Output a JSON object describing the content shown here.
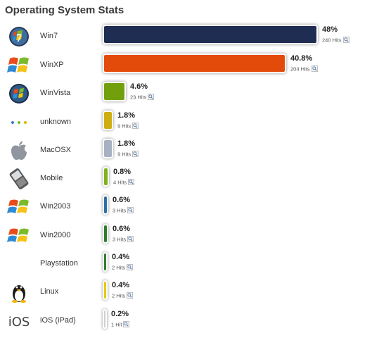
{
  "title": "Operating System Stats",
  "rows": [
    {
      "label": "Win7",
      "percent": "48%",
      "hits": "240 Hits",
      "value": 48,
      "color": "#1f2d52",
      "icon": "windows7-icon"
    },
    {
      "label": "WinXP",
      "percent": "40.8%",
      "hits": "204 Hits",
      "value": 40.8,
      "color": "#e34b0b",
      "icon": "windows-xp-icon"
    },
    {
      "label": "WinVista",
      "percent": "4.6%",
      "hits": "23 Hits",
      "value": 4.6,
      "color": "#72a00c",
      "icon": "windows-vista-icon"
    },
    {
      "label": "unknown",
      "percent": "1.8%",
      "hits": "9 Hits",
      "value": 1.8,
      "color": "#ceae10",
      "icon": "unknown-dots-icon"
    },
    {
      "label": "MacOSX",
      "percent": "1.8%",
      "hits": "9 Hits",
      "value": 1.8,
      "color": "#a7b1c2",
      "icon": "apple-icon"
    },
    {
      "label": "Mobile",
      "percent": "0.8%",
      "hits": "4 Hits",
      "value": 0.8,
      "color": "#7cb31a",
      "icon": "mobile-phone-icon"
    },
    {
      "label": "Win2003",
      "percent": "0.6%",
      "hits": "3 Hits",
      "value": 0.6,
      "color": "#2d6fa7",
      "icon": "windows-flag-icon"
    },
    {
      "label": "Win2000",
      "percent": "0.6%",
      "hits": "3 Hits",
      "value": 0.6,
      "color": "#2e7d2a",
      "icon": "windows-flag-icon"
    },
    {
      "label": "Playstation",
      "percent": "0.4%",
      "hits": "2 Hits",
      "value": 0.4,
      "color": "#2f7f2f",
      "icon": ""
    },
    {
      "label": "Linux",
      "percent": "0.4%",
      "hits": "2 Hits",
      "value": 0.4,
      "color": "#e8c80c",
      "icon": "linux-tux-icon"
    },
    {
      "label": "iOS (iPad)",
      "percent": "0.2%",
      "hits": "1 Hit",
      "value": 0.2,
      "color": "#cfcfcf",
      "icon": "ios-icon"
    }
  ]
}
